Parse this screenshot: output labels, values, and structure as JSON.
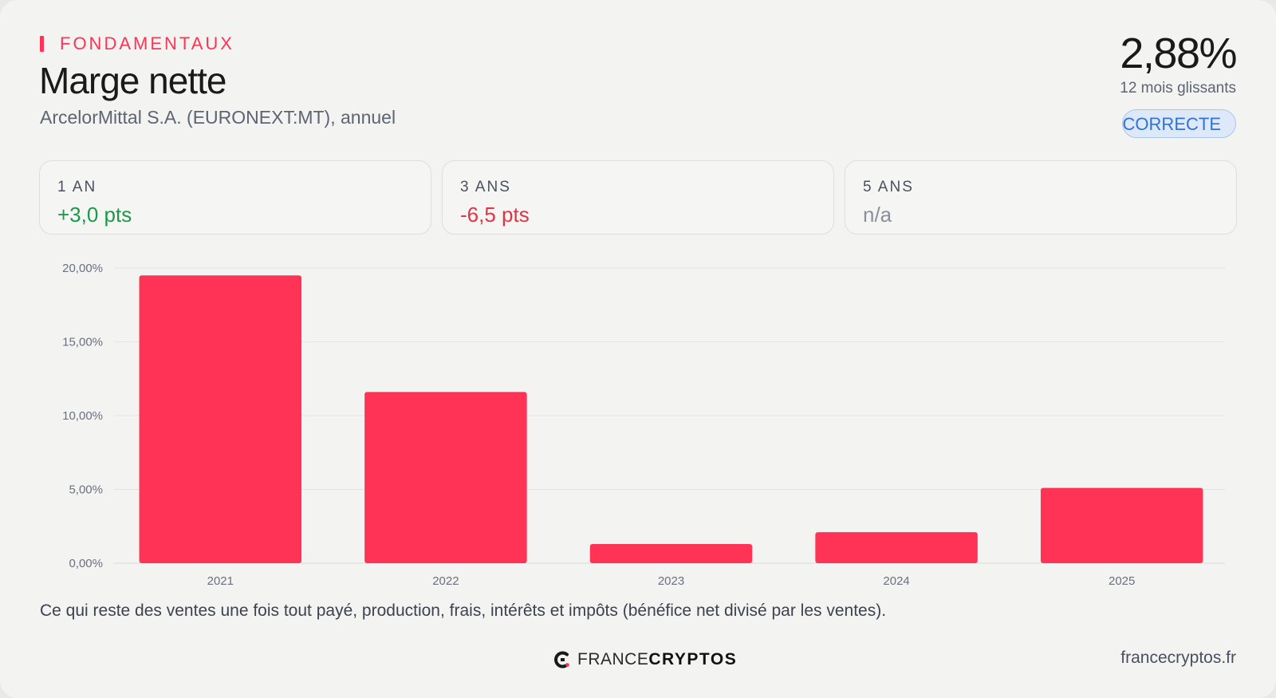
{
  "header": {
    "eyebrow": "FONDAMENTAUX",
    "title": "Marge nette",
    "subtitle": "ArcelorMittal S.A. (EURONEXT:MT), annuel"
  },
  "headline": {
    "value": "2,88%",
    "period": "12 mois glissants",
    "badge": "CORRECTE"
  },
  "stats": [
    {
      "label": "1 AN",
      "value": "+3,0 pts",
      "tone": "positive"
    },
    {
      "label": "3 ANS",
      "value": "-6,5 pts",
      "tone": "negative"
    },
    {
      "label": "5 ANS",
      "value": "n/a",
      "tone": "neutral"
    }
  ],
  "chart_data": {
    "type": "bar",
    "title": "",
    "xlabel": "",
    "ylabel": "",
    "categories": [
      "2021",
      "2022",
      "2023",
      "2024",
      "2025"
    ],
    "values": [
      19.5,
      11.6,
      1.3,
      2.1,
      5.1
    ],
    "yticks": [
      0,
      5,
      10,
      15,
      20
    ],
    "ytick_labels": [
      "0,00%",
      "5,00%",
      "10,00%",
      "15,00%",
      "20,00%"
    ],
    "ylim": [
      0,
      20
    ],
    "grid": true,
    "bar_color": "#ff3355"
  },
  "footer": {
    "description": "Ce qui reste des ventes une fois tout payé, production, frais, intérêts et impôts (bénéfice net divisé par les ventes).",
    "brand_light": "FRANCE",
    "brand_bold": "CRYPTOS",
    "site": "francecryptos.fr"
  },
  "icons": {
    "brand_logo": "francecryptos-logo-icon"
  },
  "colors": {
    "accent": "#ff3355",
    "positive": "#1a9a48",
    "negative": "#e03546",
    "badge": "#2f73d6"
  }
}
